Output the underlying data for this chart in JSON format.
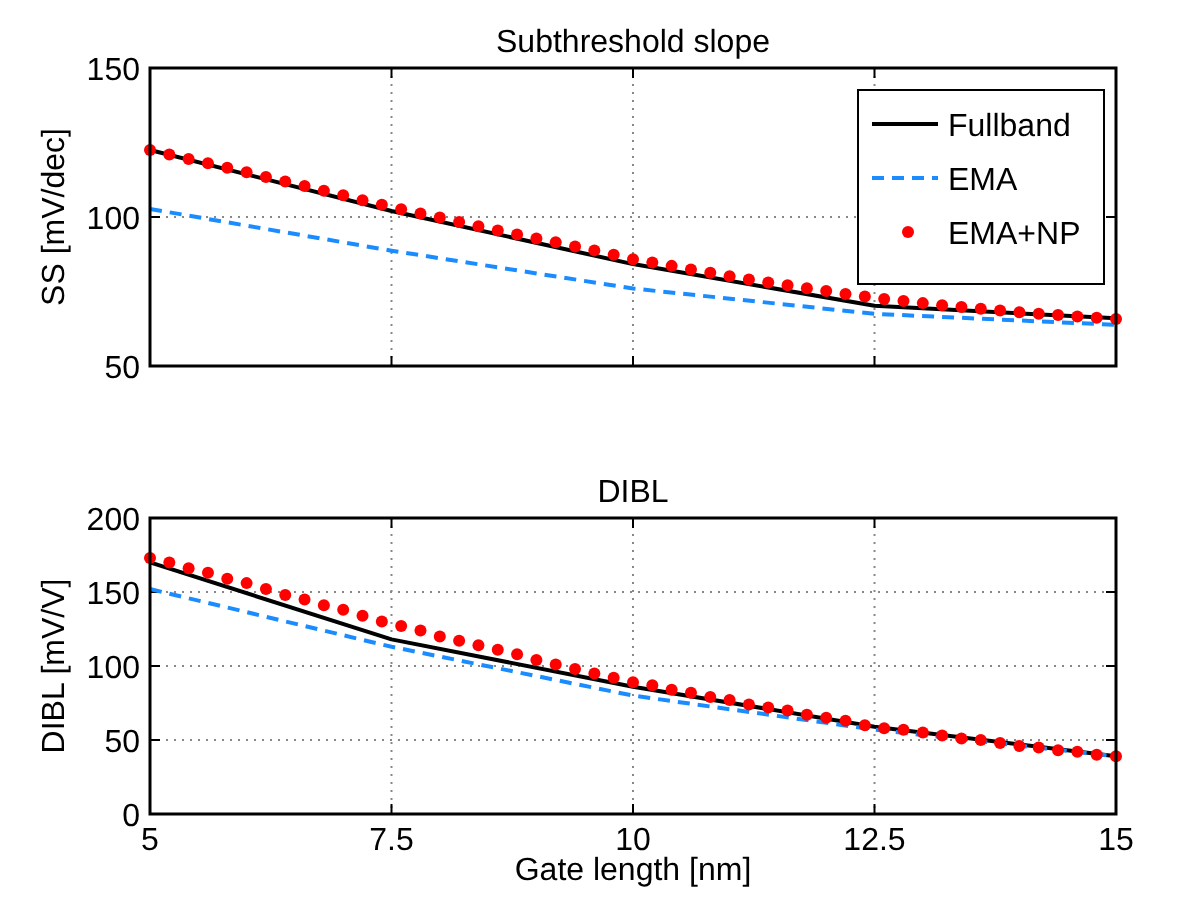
{
  "chart_data": [
    {
      "type": "line",
      "title": "Subthreshold slope",
      "ylabel": "SS [mV/dec]",
      "xlim": [
        5,
        15
      ],
      "ylim": [
        50,
        150
      ],
      "xticks": [
        5,
        7.5,
        10,
        12.5,
        15
      ],
      "yticks": [
        50,
        100,
        150
      ],
      "grid": true,
      "legend": "top right",
      "tick_labels": "y",
      "series": [
        {
          "name": "Fullband",
          "color": "#000000",
          "line_style": "solid",
          "x": [
            5,
            7.5,
            10,
            12.5,
            15
          ],
          "values": [
            122.5,
            102,
            84.2,
            70.2,
            66
          ]
        },
        {
          "name": "EMA",
          "color": "#1a8cff",
          "line_style": "dashed",
          "x": [
            5,
            7.5,
            10,
            12.5,
            15
          ],
          "values": [
            102.7,
            88.7,
            76,
            67.5,
            63.8
          ]
        },
        {
          "name": "EMA+NP",
          "type": "scatter",
          "marker": "circle",
          "color": "#ff0000",
          "x": [
            5,
            5.2,
            5.4,
            5.6,
            5.8,
            6,
            6.2,
            6.4,
            6.6,
            6.8,
            7,
            7.2,
            7.4,
            7.6,
            7.8,
            8,
            8.2,
            8.4,
            8.6,
            8.8,
            9,
            9.2,
            9.4,
            9.6,
            9.8,
            10,
            10.2,
            10.4,
            10.6,
            10.8,
            11,
            11.2,
            11.4,
            11.6,
            11.8,
            12,
            12.2,
            12.4,
            12.6,
            12.8,
            13,
            13.2,
            13.4,
            13.6,
            13.8,
            14,
            14.2,
            14.4,
            14.6,
            14.8,
            15
          ],
          "values": [
            122.5,
            121,
            119.5,
            118,
            116.5,
            115,
            113.4,
            111.9,
            110.4,
            108.8,
            107.3,
            105.6,
            104.1,
            102.6,
            101.2,
            99.8,
            98.3,
            96.9,
            95.5,
            94.1,
            92.8,
            91.5,
            90.1,
            88.8,
            87.3,
            85.8,
            84.7,
            83.6,
            82.4,
            81.3,
            80.1,
            79,
            78,
            77.1,
            76.1,
            75.2,
            74.2,
            73.3,
            72.5,
            71.8,
            71.1,
            70.4,
            69.8,
            69.2,
            68.6,
            68,
            67.5,
            67.1,
            66.6,
            66.2,
            65.8
          ]
        }
      ]
    },
    {
      "type": "line",
      "title": "DIBL",
      "ylabel": "DIBL [mV/V]",
      "xlabel": "Gate length [nm]",
      "xlim": [
        5,
        15
      ],
      "ylim": [
        0,
        200
      ],
      "xticks": [
        5,
        7.5,
        10,
        12.5,
        15
      ],
      "yticks": [
        0,
        50,
        100,
        150,
        200
      ],
      "grid": true,
      "series": [
        {
          "color": "#000000",
          "line_style": "solid",
          "x": [
            5,
            7.5,
            10,
            12.5,
            15
          ],
          "values": [
            170,
            118,
            86,
            59,
            39
          ]
        },
        {
          "color": "#1a8cff",
          "line_style": "dashed",
          "x": [
            5,
            7.5,
            10,
            12.5,
            15
          ],
          "values": [
            152,
            113,
            80,
            57,
            39
          ]
        },
        {
          "type": "scatter",
          "marker": "circle",
          "color": "#ff0000",
          "x": [
            5,
            5.2,
            5.4,
            5.6,
            5.8,
            6,
            6.2,
            6.4,
            6.6,
            6.8,
            7,
            7.2,
            7.4,
            7.6,
            7.8,
            8,
            8.2,
            8.4,
            8.6,
            8.8,
            9,
            9.2,
            9.4,
            9.6,
            9.8,
            10,
            10.2,
            10.4,
            10.6,
            10.8,
            11,
            11.2,
            11.4,
            11.6,
            11.8,
            12,
            12.2,
            12.4,
            12.6,
            12.8,
            13,
            13.2,
            13.4,
            13.6,
            13.8,
            14,
            14.2,
            14.4,
            14.6,
            14.8,
            15
          ],
          "values": [
            173,
            170,
            166,
            163,
            159,
            156,
            152,
            148,
            145,
            141,
            138,
            134,
            130,
            127,
            124,
            120,
            117,
            114,
            111,
            108,
            104,
            101,
            98,
            95,
            92,
            89,
            87,
            84,
            82,
            79,
            77,
            74,
            72,
            70,
            67,
            65,
            63,
            60,
            58,
            57,
            55,
            53,
            51,
            50,
            48,
            46,
            45,
            43,
            42,
            40,
            39
          ]
        }
      ]
    }
  ]
}
